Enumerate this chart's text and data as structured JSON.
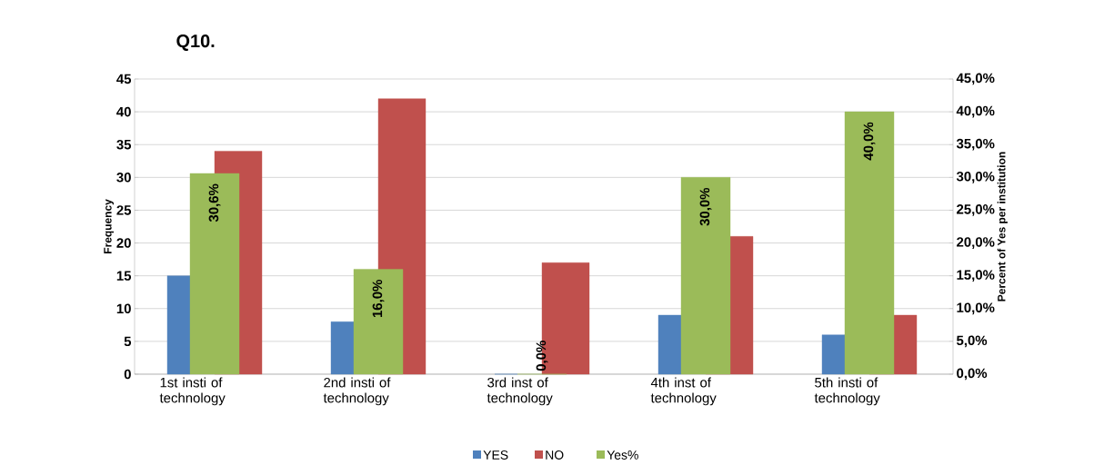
{
  "chart_data": {
    "type": "bar",
    "title": "Q10.",
    "ylabel": "Frequency",
    "y2label": "Percent of Yes per institution",
    "categories": [
      "1st insti of technology",
      "2nd insti of technology",
      "3rd inst of technology",
      "4th inst of technology",
      "5th insti of technology"
    ],
    "series": [
      {
        "name": "YES",
        "color": "#4f81bd",
        "values": [
          15,
          8,
          0,
          9,
          6
        ]
      },
      {
        "name": "NO",
        "color": "#c0504d",
        "values": [
          34,
          42,
          17,
          21,
          9
        ]
      },
      {
        "name": "Yes%",
        "color": "#9bbb59",
        "axis": "y2",
        "values": [
          30.6,
          16.0,
          0.0,
          30.0,
          40.0
        ],
        "value_labels": [
          "30,6%",
          "16,0%",
          "0,0%",
          "30,0%",
          "40,0%"
        ]
      }
    ],
    "ylim": [
      0,
      45
    ],
    "yticks": [
      0,
      5,
      10,
      15,
      20,
      25,
      30,
      35,
      40,
      45
    ],
    "y2lim": [
      0,
      45
    ],
    "y2ticks": [
      {
        "value": 0,
        "label": "0,0%"
      },
      {
        "value": 5,
        "label": "5,0%"
      },
      {
        "value": 10,
        "label": "10,0%"
      },
      {
        "value": 15,
        "label": "15,0%"
      },
      {
        "value": 20,
        "label": "20,0%"
      },
      {
        "value": 25,
        "label": "25,0%"
      },
      {
        "value": 30,
        "label": "30,0%"
      },
      {
        "value": 35,
        "label": "35,0%"
      },
      {
        "value": 40,
        "label": "40,0%"
      },
      {
        "value": 45,
        "label": "45,0%"
      }
    ],
    "grid": "y",
    "legend": "bottom"
  }
}
